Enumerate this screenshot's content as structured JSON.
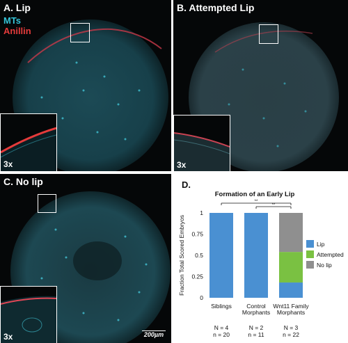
{
  "panels": {
    "a": {
      "label": "A. Lip",
      "channel_mt": "MTs",
      "channel_anillin": "Anillin",
      "inset_mag": "3x"
    },
    "b": {
      "label": "B. Attempted Lip",
      "inset_mag": "3x"
    },
    "c": {
      "label": "C. No lip",
      "inset_mag": "3x",
      "scale_bar": "200µm"
    }
  },
  "colors": {
    "microtubules": "#35c4d8",
    "anillin": "#e53b3b",
    "lip": "#4a90d2",
    "attempted": "#7ac142",
    "nolip": "#8f8f8f"
  },
  "panel_d": {
    "label": "D."
  },
  "chart_data": {
    "type": "bar",
    "stacked": true,
    "title": "Formation of an Early Lip",
    "xlabel": "",
    "ylabel": "Fraction Total Scored Embryos",
    "ylim": [
      0,
      1
    ],
    "yticks": [
      "0",
      "0.25",
      "0.5",
      "0.75",
      "1"
    ],
    "categories": [
      "Siblings",
      "Control Morphants",
      "Wnt11 Family Morphants"
    ],
    "category_lines": [
      [
        "Siblings"
      ],
      [
        "Control",
        "Morphants"
      ],
      [
        "Wnt11 Family",
        "Morphants"
      ]
    ],
    "series": [
      {
        "name": "Lip",
        "color": "#4a90d2",
        "values": [
          1.0,
          1.0,
          0.18
        ]
      },
      {
        "name": "Attempted",
        "color": "#7ac142",
        "values": [
          0.0,
          0.0,
          0.36
        ]
      },
      {
        "name": "No lip",
        "color": "#8f8f8f",
        "values": [
          0.0,
          0.0,
          0.46
        ]
      }
    ],
    "sample_sizes": [
      {
        "N": "N = 4",
        "n": "n = 20"
      },
      {
        "N": "N = 2",
        "n": "n = 11"
      },
      {
        "N": "N = 3",
        "n": "n = 22"
      }
    ],
    "significance": [
      {
        "from": 0,
        "to": 2,
        "label": "**"
      },
      {
        "from": 1,
        "to": 2,
        "label": "**"
      }
    ],
    "legend_placement": "right",
    "grid": false
  }
}
